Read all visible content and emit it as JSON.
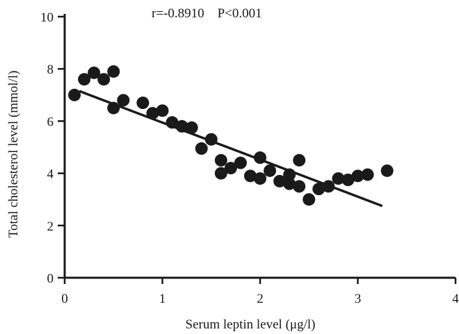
{
  "chart_data": {
    "type": "scatter",
    "title": "",
    "xlabel": "Serum leptin level (μg/l)",
    "ylabel": "Total cholesterol level (mmol/l)",
    "xlim": [
      0,
      4
    ],
    "ylim": [
      0,
      10
    ],
    "xticks": [
      "0",
      "1",
      "2",
      "3",
      "4"
    ],
    "yticks": [
      "0",
      "2",
      "4",
      "6",
      "8",
      "10"
    ],
    "grid": false,
    "annotation": "r=-0.8910    P<0.001",
    "marker_color": "#1a1a1a",
    "points": [
      {
        "x": 0.1,
        "y": 7.0
      },
      {
        "x": 0.2,
        "y": 7.6
      },
      {
        "x": 0.3,
        "y": 7.85
      },
      {
        "x": 0.4,
        "y": 7.6
      },
      {
        "x": 0.5,
        "y": 7.9
      },
      {
        "x": 0.5,
        "y": 6.5
      },
      {
        "x": 0.6,
        "y": 6.8
      },
      {
        "x": 0.8,
        "y": 6.7
      },
      {
        "x": 0.9,
        "y": 6.3
      },
      {
        "x": 1.0,
        "y": 6.4
      },
      {
        "x": 1.1,
        "y": 5.95
      },
      {
        "x": 1.2,
        "y": 5.8
      },
      {
        "x": 1.3,
        "y": 5.75
      },
      {
        "x": 1.4,
        "y": 4.95
      },
      {
        "x": 1.5,
        "y": 5.3
      },
      {
        "x": 1.6,
        "y": 4.5
      },
      {
        "x": 1.6,
        "y": 4.0
      },
      {
        "x": 1.7,
        "y": 4.2
      },
      {
        "x": 1.8,
        "y": 4.4
      },
      {
        "x": 1.9,
        "y": 3.9
      },
      {
        "x": 2.0,
        "y": 4.6
      },
      {
        "x": 2.0,
        "y": 3.8
      },
      {
        "x": 2.1,
        "y": 4.1
      },
      {
        "x": 2.2,
        "y": 3.7
      },
      {
        "x": 2.3,
        "y": 3.95
      },
      {
        "x": 2.3,
        "y": 3.6
      },
      {
        "x": 2.4,
        "y": 4.5
      },
      {
        "x": 2.4,
        "y": 3.5
      },
      {
        "x": 2.5,
        "y": 3.0
      },
      {
        "x": 2.6,
        "y": 3.4
      },
      {
        "x": 2.7,
        "y": 3.5
      },
      {
        "x": 2.8,
        "y": 3.8
      },
      {
        "x": 2.9,
        "y": 3.75
      },
      {
        "x": 3.0,
        "y": 3.9
      },
      {
        "x": 3.1,
        "y": 3.95
      },
      {
        "x": 3.3,
        "y": 4.1
      }
    ],
    "trendline": {
      "x": [
        0.15,
        3.25
      ],
      "y": [
        7.15,
        2.75
      ]
    }
  }
}
